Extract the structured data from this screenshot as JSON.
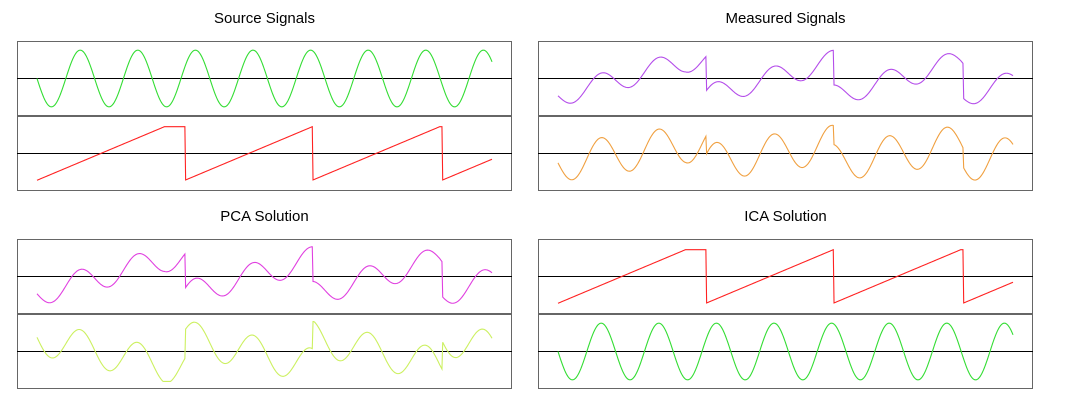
{
  "chart_data": [
    {
      "type": "line",
      "title": "Source Signals",
      "x": [
        0,
        1
      ],
      "series": [
        {
          "kind": "sine",
          "color": "#33dd33",
          "amp": 0.9,
          "cycles": 7.9,
          "phase": 3.14
        },
        {
          "kind": "sawtooth",
          "color": "#ff2222",
          "amp": 0.85,
          "breaks": [
            0.325,
            0.605,
            0.89
          ],
          "start": -0.85
        }
      ],
      "ylim": [
        -1,
        1
      ],
      "grid": false
    },
    {
      "type": "line",
      "title": "Measured Signals",
      "x": [
        0,
        1
      ],
      "series": [
        {
          "kind": "mix",
          "color": "#b44dea",
          "saw_w": 0.55,
          "sine_w": 0.35,
          "cycles": 7.9
        },
        {
          "kind": "mix",
          "color": "#f0a040",
          "saw_w": 0.3,
          "sine_w": 0.6,
          "cycles": 7.9
        }
      ],
      "ylim": [
        -1,
        1
      ],
      "grid": false
    },
    {
      "type": "line",
      "title": "PCA Solution",
      "x": [
        0,
        1
      ],
      "series": [
        {
          "kind": "mix",
          "color": "#e040e0",
          "saw_w": 0.55,
          "sine_w": 0.4,
          "cycles": 7.9
        },
        {
          "kind": "mix",
          "color": "#ccf060",
          "saw_w": -0.45,
          "sine_w": 0.55,
          "cycles": 7.9
        }
      ],
      "ylim": [
        -1,
        1
      ],
      "grid": false
    },
    {
      "type": "line",
      "title": "ICA Solution",
      "x": [
        0,
        1
      ],
      "series": [
        {
          "kind": "sawtooth",
          "color": "#ff2222",
          "amp": 0.85,
          "breaks": [
            0.325,
            0.605,
            0.89
          ],
          "start": -0.85
        },
        {
          "kind": "sine",
          "color": "#33dd33",
          "amp": 0.9,
          "cycles": 7.9,
          "phase": 3.14
        }
      ],
      "ylim": [
        -1,
        1
      ],
      "grid": false
    }
  ]
}
